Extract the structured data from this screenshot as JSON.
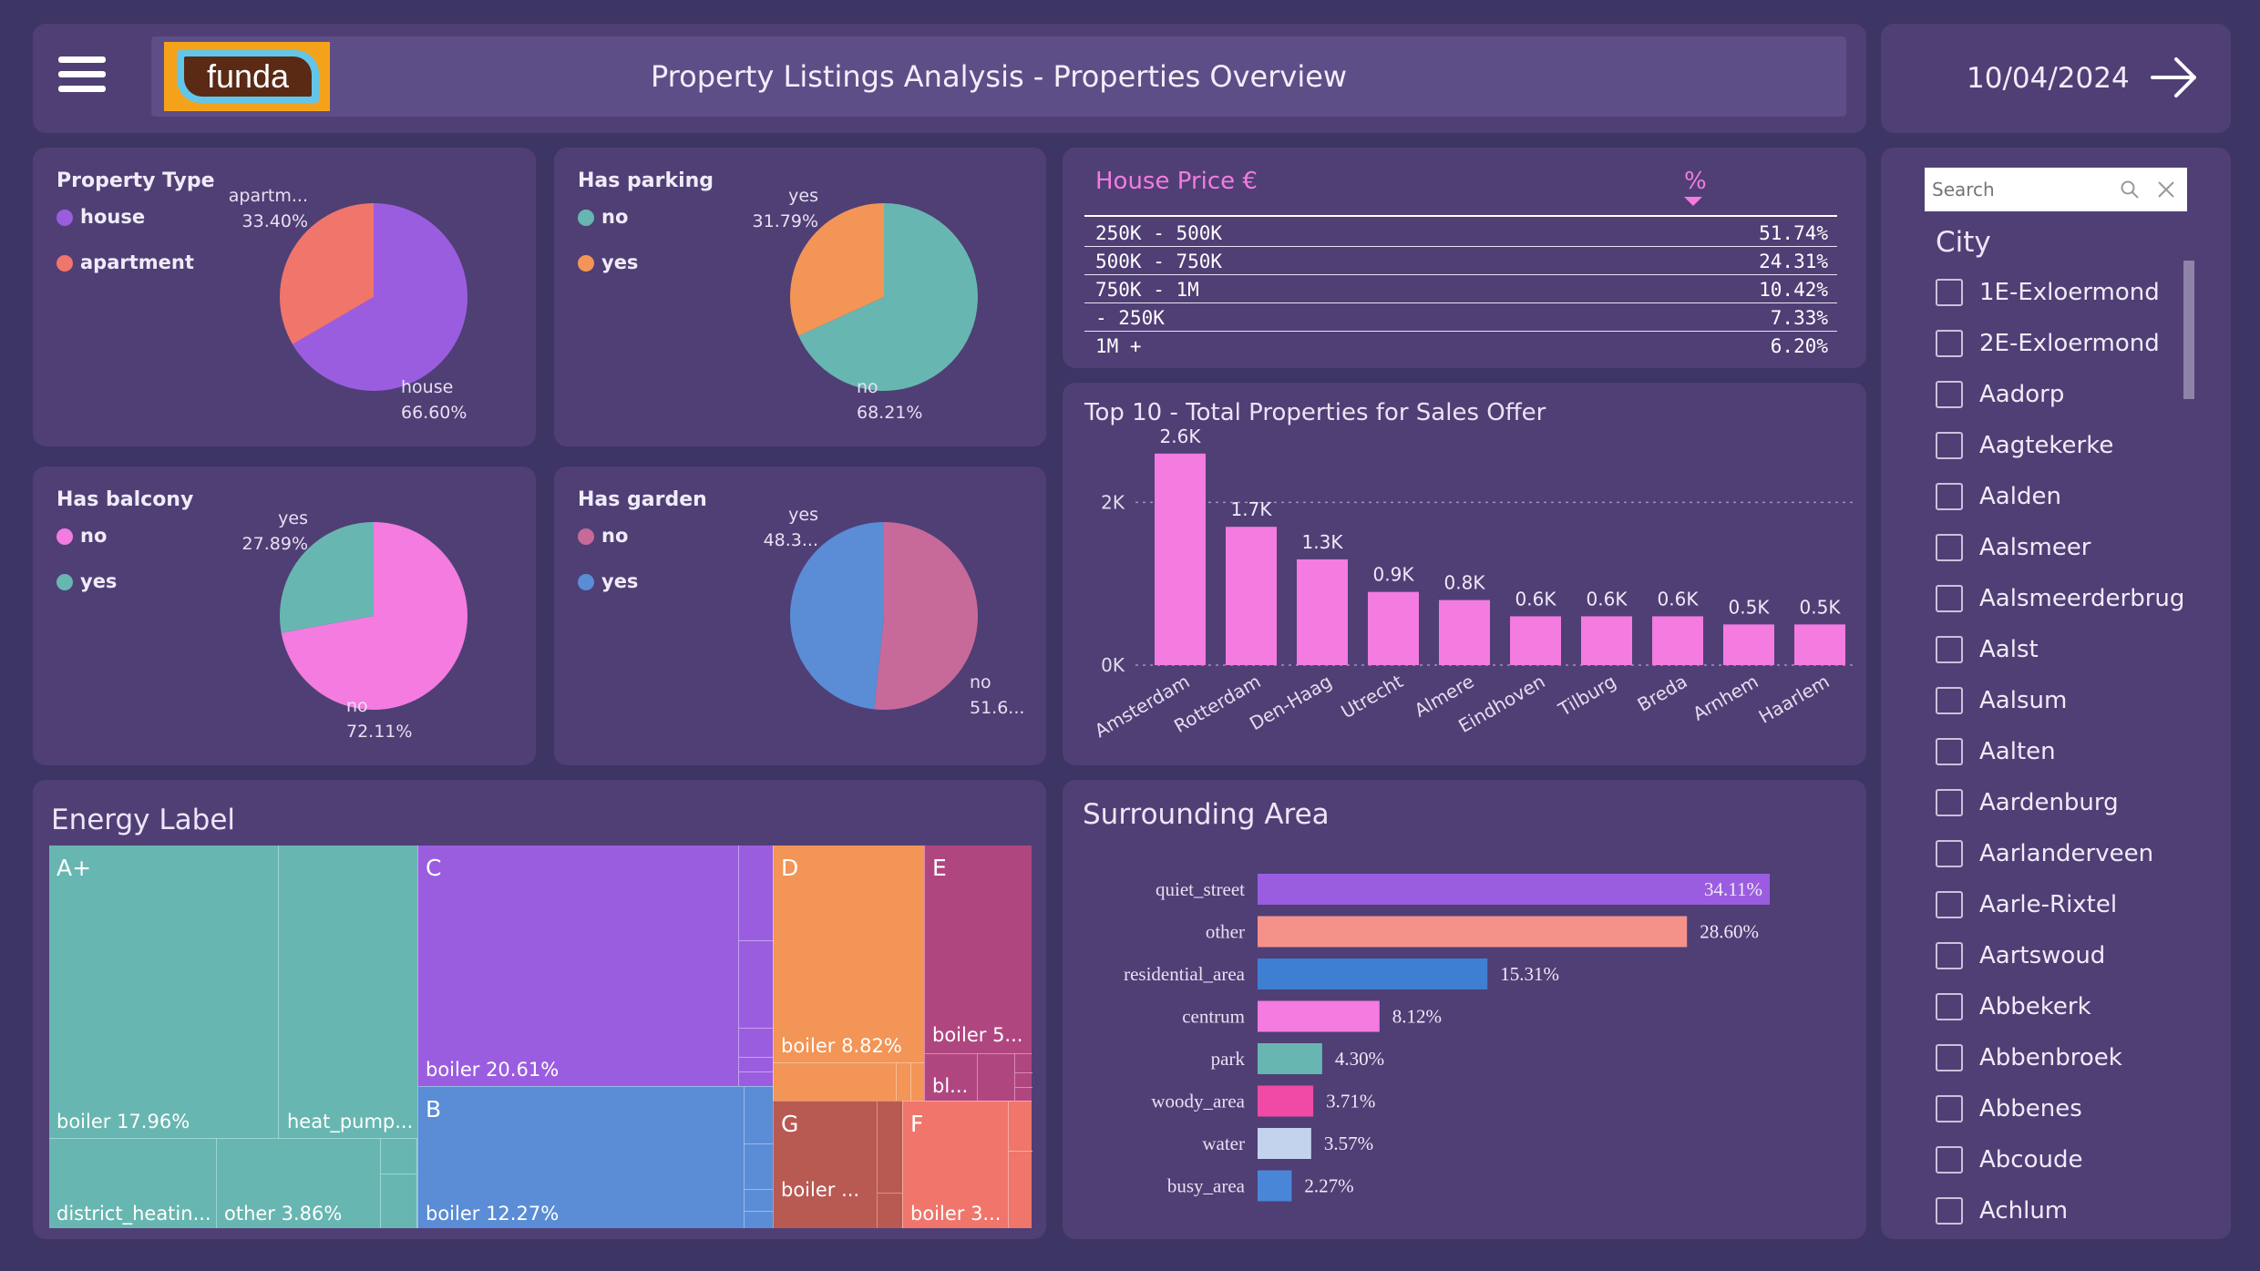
{
  "header": {
    "logo_text": "funda",
    "title": "Property Listings Analysis - Properties Overview",
    "date": "10/04/2024"
  },
  "colors": {
    "background": "#3d3563",
    "panel": "#4f3f75",
    "accent_pink": "#f47be0",
    "purple": "#9b5de0",
    "coral": "#f0756b",
    "teal": "#68b6b1",
    "orange": "#f29556",
    "pink": "#f47be0",
    "blue": "#5b8cd6",
    "mauve": "#c76a9a"
  },
  "pies": [
    {
      "id": "property-type",
      "title": "Property Type",
      "legend": [
        {
          "label": "house",
          "color": "#9b5de0"
        },
        {
          "label": "apartment",
          "color": "#f0756b"
        }
      ],
      "slices": [
        {
          "label": "house",
          "value": 66.6,
          "color": "#9b5de0"
        },
        {
          "label": "apartment",
          "value": 33.4,
          "color": "#f0756b"
        }
      ],
      "labels": {
        "minor_name": "apartm...",
        "minor_pct": "33.40%",
        "major_name": "house",
        "major_pct": "66.60%"
      }
    },
    {
      "id": "has-parking",
      "title": "Has parking",
      "legend": [
        {
          "label": "no",
          "color": "#68b6b1"
        },
        {
          "label": "yes",
          "color": "#f29556"
        }
      ],
      "slices": [
        {
          "label": "no",
          "value": 68.21,
          "color": "#68b6b1"
        },
        {
          "label": "yes",
          "value": 31.79,
          "color": "#f29556"
        }
      ],
      "labels": {
        "minor_name": "yes",
        "minor_pct": "31.79%",
        "major_name": "no",
        "major_pct": "68.21%"
      }
    },
    {
      "id": "has-balcony",
      "title": "Has balcony",
      "legend": [
        {
          "label": "no",
          "color": "#f47be0"
        },
        {
          "label": "yes",
          "color": "#68b6b1"
        }
      ],
      "slices": [
        {
          "label": "no",
          "value": 72.11,
          "color": "#f47be0"
        },
        {
          "label": "yes",
          "value": 27.89,
          "color": "#68b6b1"
        }
      ],
      "labels": {
        "minor_name": "yes",
        "minor_pct": "27.89%",
        "major_name": "no",
        "major_pct": "72.11%"
      }
    },
    {
      "id": "has-garden",
      "title": "Has garden",
      "legend": [
        {
          "label": "no",
          "color": "#c76a9a"
        },
        {
          "label": "yes",
          "color": "#5b8cd6"
        }
      ],
      "slices": [
        {
          "label": "no",
          "value": 51.6,
          "color": "#c76a9a"
        },
        {
          "label": "yes",
          "value": 48.3,
          "color": "#5b8cd6"
        }
      ],
      "labels": {
        "minor_name": "yes",
        "minor_pct": "48.3...",
        "major_name": "no",
        "major_pct": "51.6..."
      }
    }
  ],
  "price_table": {
    "header": "House Price €",
    "pct_header": "%",
    "rows": [
      {
        "range": "250K - 500K",
        "pct": "51.74%"
      },
      {
        "range": "500K - 750K",
        "pct": "24.31%"
      },
      {
        "range": "750K - 1M",
        "pct": "10.42%"
      },
      {
        "range": "- 250K",
        "pct": "7.33%"
      },
      {
        "range": "1M +",
        "pct": "6.20%"
      }
    ]
  },
  "top10": {
    "title": "Top 10 - Total Properties for Sales Offer",
    "ticks": [
      "2K",
      "0K"
    ],
    "cities": [
      "Amsterdam",
      "Rotterdam",
      "Den-Haag",
      "Utrecht",
      "Almere",
      "Eindhoven",
      "Tilburg",
      "Breda",
      "Arnhem",
      "Haarlem"
    ],
    "labels": [
      "2.6K",
      "1.7K",
      "1.3K",
      "0.9K",
      "0.8K",
      "0.6K",
      "0.6K",
      "0.6K",
      "0.5K",
      "0.5K"
    ]
  },
  "energy": {
    "title": "Energy Label",
    "letters": {
      "Ap": "A+",
      "C": "C",
      "D": "D",
      "E": "E",
      "B": "B",
      "G": "G",
      "F": "F"
    },
    "texts": {
      "ap_boiler": "boiler 17.96%",
      "ap_heat": "heat_pump...",
      "ap_district": "district_heatin...",
      "ap_other": "other 3.86%",
      "c_boiler": "boiler 20.61%",
      "b_boiler": "boiler 12.27%",
      "d_boiler": "boiler 8.82%",
      "e_boiler": "boiler 5...",
      "e_bl": "bl...",
      "g_boiler": "boiler ...",
      "f_boiler": "boiler 3..."
    }
  },
  "surrounding": {
    "title": "Surrounding Area",
    "categories": [
      "quiet_street",
      "other",
      "residential_area",
      "centrum",
      "park",
      "woody_area",
      "water",
      "busy_area"
    ],
    "labels": [
      "34.11%",
      "28.60%",
      "15.31%",
      "8.12%",
      "4.30%",
      "3.71%",
      "3.57%",
      "2.27%"
    ]
  },
  "slicer": {
    "search_placeholder": "Search",
    "title": "City",
    "items": [
      "1E-Exloermond",
      "2E-Exloermond",
      "Aadorp",
      "Aagtekerke",
      "Aalden",
      "Aalsmeer",
      "Aalsmeerderbrug",
      "Aalst",
      "Aalsum",
      "Aalten",
      "Aardenburg",
      "Aarlanderveen",
      "Aarle-Rixtel",
      "Aartswoud",
      "Abbekerk",
      "Abbenbroek",
      "Abbenes",
      "Abcoude",
      "Achlum"
    ]
  },
  "chart_data": [
    {
      "type": "pie",
      "title": "Property Type",
      "categories": [
        "house",
        "apartment"
      ],
      "values": [
        66.6,
        33.4
      ]
    },
    {
      "type": "pie",
      "title": "Has parking",
      "categories": [
        "no",
        "yes"
      ],
      "values": [
        68.21,
        31.79
      ]
    },
    {
      "type": "pie",
      "title": "Has balcony",
      "categories": [
        "no",
        "yes"
      ],
      "values": [
        72.11,
        27.89
      ]
    },
    {
      "type": "pie",
      "title": "Has garden",
      "categories": [
        "no",
        "yes"
      ],
      "values": [
        51.6,
        48.3
      ]
    },
    {
      "type": "table",
      "title": "House Price €",
      "columns": [
        "House Price €",
        "%"
      ],
      "rows": [
        [
          "250K - 500K",
          51.74
        ],
        [
          "500K - 750K",
          24.31
        ],
        [
          "750K - 1M",
          10.42
        ],
        [
          "- 250K",
          7.33
        ],
        [
          "1M +",
          6.2
        ]
      ]
    },
    {
      "type": "bar",
      "title": "Top 10 - Total Properties for Sales Offer",
      "categories": [
        "Amsterdam",
        "Rotterdam",
        "Den-Haag",
        "Utrecht",
        "Almere",
        "Eindhoven",
        "Tilburg",
        "Breda",
        "Arnhem",
        "Haarlem"
      ],
      "values": [
        2600,
        1700,
        1300,
        900,
        800,
        600,
        600,
        600,
        500,
        500
      ],
      "ylim": [
        0,
        2800
      ],
      "grid": true
    },
    {
      "type": "treemap",
      "title": "Energy Label",
      "groups": [
        {
          "name": "A+",
          "items": [
            {
              "name": "boiler",
              "value": 17.96
            },
            {
              "name": "heat_pump..."
            },
            {
              "name": "district_heatin..."
            },
            {
              "name": "other",
              "value": 3.86
            }
          ]
        },
        {
          "name": "C",
          "items": [
            {
              "name": "boiler",
              "value": 20.61
            }
          ]
        },
        {
          "name": "B",
          "items": [
            {
              "name": "boiler",
              "value": 12.27
            }
          ]
        },
        {
          "name": "D",
          "items": [
            {
              "name": "boiler",
              "value": 8.82
            }
          ]
        },
        {
          "name": "E",
          "items": [
            {
              "name": "boiler 5..."
            },
            {
              "name": "bl..."
            }
          ]
        },
        {
          "name": "G",
          "items": [
            {
              "name": "boiler ..."
            }
          ]
        },
        {
          "name": "F",
          "items": [
            {
              "name": "boiler 3..."
            }
          ]
        }
      ]
    },
    {
      "type": "bar",
      "orientation": "horizontal",
      "title": "Surrounding Area",
      "categories": [
        "quiet_street",
        "other",
        "residential_area",
        "centrum",
        "park",
        "woody_area",
        "water",
        "busy_area"
      ],
      "values": [
        34.11,
        28.6,
        15.31,
        8.12,
        4.3,
        3.71,
        3.57,
        2.27
      ],
      "colors": [
        "#9b5de0",
        "#f4928a",
        "#3f7fd1",
        "#f47be0",
        "#68b6b1",
        "#f04aa6",
        "#c3d3ee",
        "#4a86d8"
      ]
    }
  ]
}
